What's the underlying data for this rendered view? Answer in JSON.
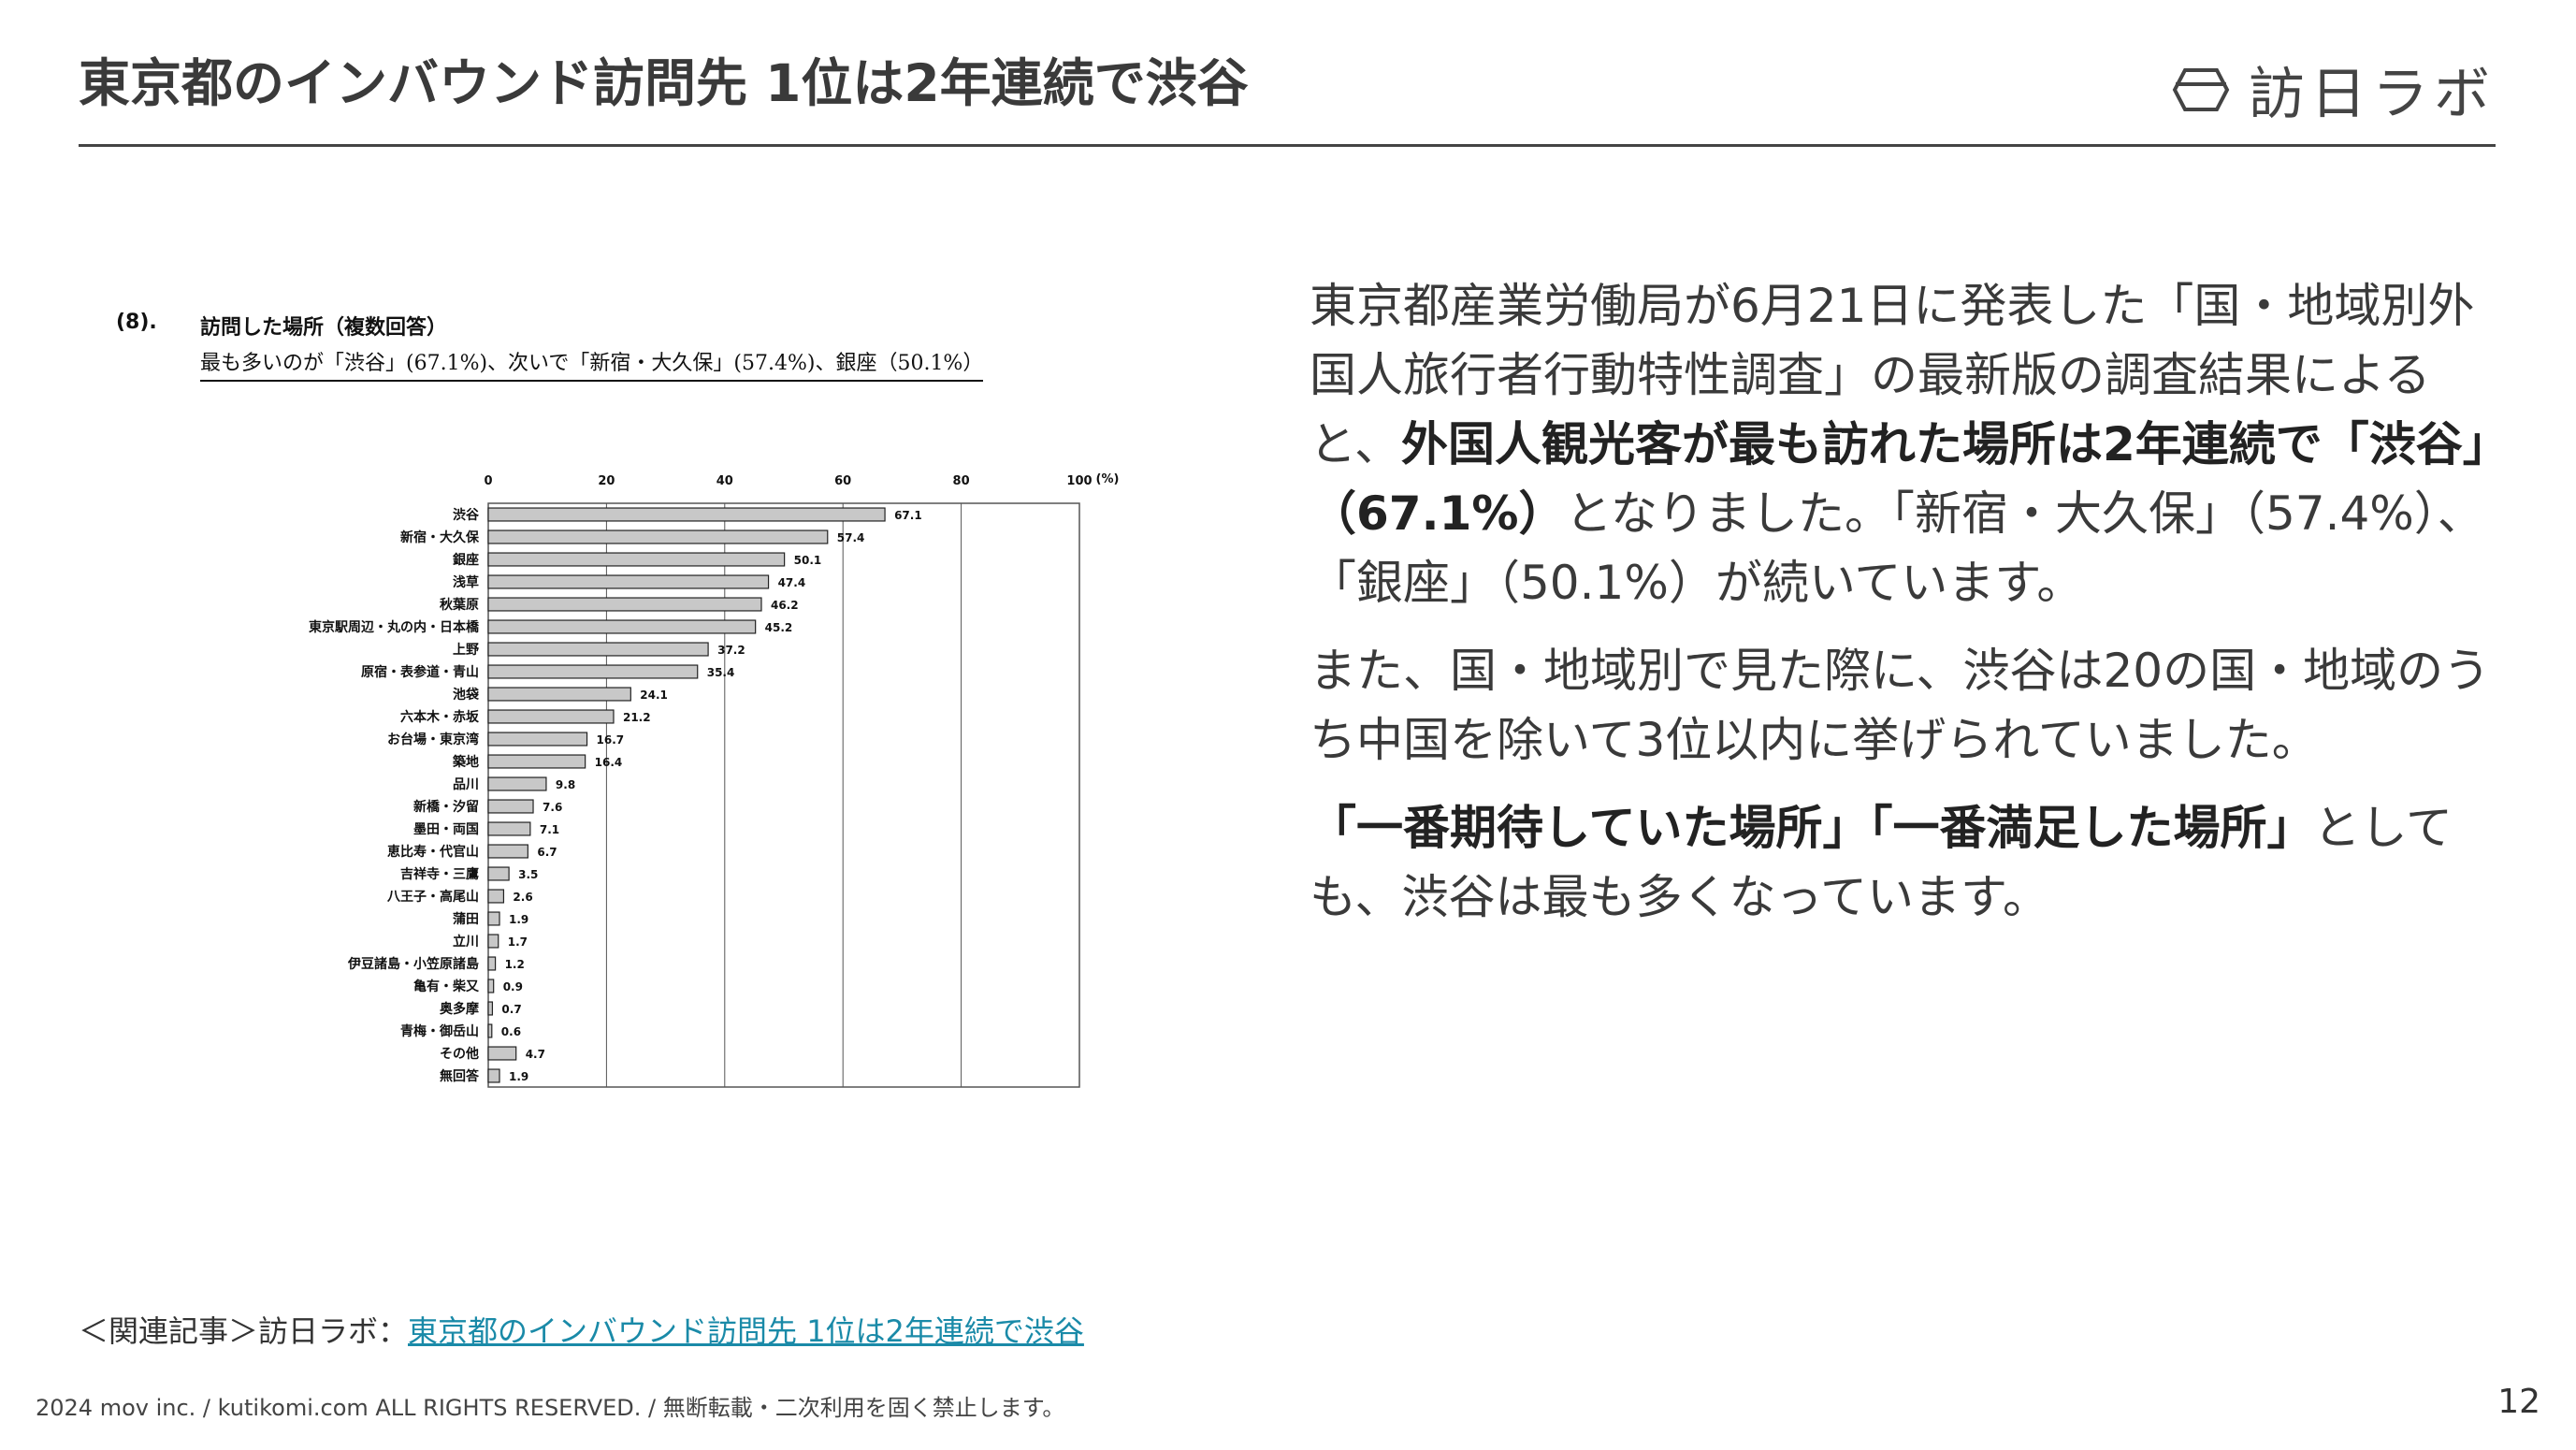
{
  "slide": {
    "title": "東京都のインバウンド訪問先 1位は2年連続で渋谷",
    "logo_text": "訪日ラボ",
    "page_number": "12"
  },
  "figure": {
    "number": "(8).",
    "heading": "訪問した場所（複数回答）",
    "subtitle": "最も多いのが「渋谷」(67.1%)、次いで「新宿・大久保」(57.4%)、銀座（50.1%）"
  },
  "chart_data": {
    "type": "bar",
    "orientation": "horizontal",
    "unit_label": "(%)",
    "xlim": [
      0,
      100
    ],
    "ticks": [
      0,
      20,
      40,
      60,
      80,
      100
    ],
    "grid": true,
    "bar_color": "#c8c8c8",
    "categories": [
      "渋谷",
      "新宿・大久保",
      "銀座",
      "浅草",
      "秋葉原",
      "東京駅周辺・丸の内・日本橋",
      "上野",
      "原宿・表参道・青山",
      "池袋",
      "六本木・赤坂",
      "お台場・東京湾",
      "築地",
      "品川",
      "新橋・汐留",
      "墨田・両国",
      "恵比寿・代官山",
      "吉祥寺・三鷹",
      "八王子・高尾山",
      "蒲田",
      "立川",
      "伊豆諸島・小笠原諸島",
      "亀有・柴又",
      "奥多摩",
      "青梅・御岳山",
      "その他",
      "無回答"
    ],
    "values": [
      67.1,
      57.4,
      50.1,
      47.4,
      46.2,
      45.2,
      37.2,
      35.4,
      24.1,
      21.2,
      16.7,
      16.4,
      9.8,
      7.6,
      7.1,
      6.7,
      3.5,
      2.6,
      1.9,
      1.7,
      1.2,
      0.9,
      0.7,
      0.6,
      4.7,
      1.9
    ],
    "value_labels": [
      "67.1",
      "57.4",
      "50.1",
      "47.4",
      "46.2",
      "45.2",
      "37.2",
      "35.4",
      "24.1",
      "21.2",
      "16.7",
      "16.4",
      "9.8",
      "7.6",
      "7.1",
      "6.7",
      "3.5",
      "2.6",
      "1.9",
      "1.7",
      "1.2",
      "0.9",
      "0.7",
      "0.6",
      "4.7",
      "1.9"
    ]
  },
  "body": {
    "p1_a": "東京都産業労働局が6月21日に発表した「国・地域別外国人旅行者行動特性調査」の最新版の調査結果によると、",
    "p1_b": "外国人観光客が最も訪れた場所は2年連続で「渋谷」（67.1%）",
    "p1_c": "となりました。「新宿・大久保」（57.4%）、「銀座」（50.1%）が続いています。",
    "p2": "また、国・地域別で見た際に、渋谷は20の国・地域のうち中国を除いて3位以内に挙げられていました。",
    "p3_a": "「一番期待していた場所」「一番満足した場所」",
    "p3_b": "としても、渋谷は最も多くなっています。"
  },
  "related": {
    "prefix": "＜関連記事＞訪日ラボ：",
    "link": "東京都のインバウンド訪問先 1位は2年連続で渋谷"
  },
  "footer": {
    "copyright": "2024 mov inc. / kutikomi.com ALL RIGHTS RESERVED. / 無断転載・二次利用を固く禁止します。"
  }
}
